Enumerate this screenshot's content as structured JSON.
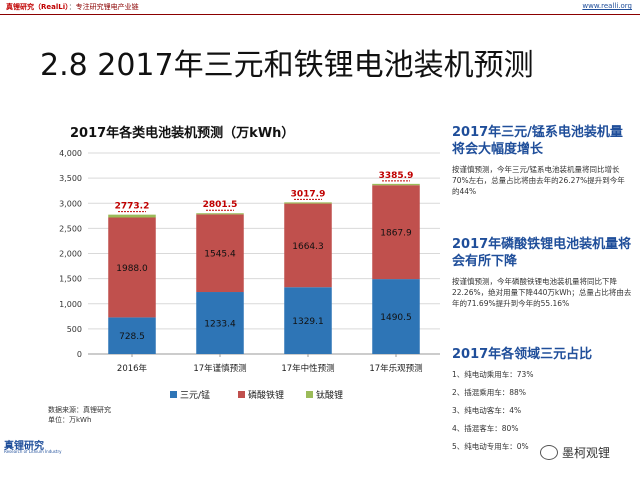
{
  "header": {
    "brand": "真锂研究（RealLi）",
    "separator": "：",
    "tagline": "专注研究锂电产业链",
    "url": "www.realli.org"
  },
  "slide_title": "2.8 2017年三元和铁锂电池装机预测",
  "chart_data": {
    "type": "bar",
    "stacked": true,
    "title": "2017年各类电池装机预测（万kWh）",
    "categories": [
      "2016年",
      "17年谨慎预测",
      "17年中性预测",
      "17年乐观预测"
    ],
    "series": [
      {
        "name": "三元/锰",
        "color": "#2e75b6",
        "values": [
          728.5,
          1233.4,
          1329.1,
          1490.5
        ]
      },
      {
        "name": "磷酸铁锂",
        "color": "#c0504d",
        "values": [
          1988.0,
          1545.4,
          1664.3,
          1867.9
        ]
      },
      {
        "name": "钛酸锂",
        "color": "#9bbb59",
        "values": [
          56.7,
          22.7,
          24.5,
          27.5
        ]
      }
    ],
    "series_labels": [
      [
        "728.5",
        "1233.4",
        "1329.1",
        "1490.5"
      ],
      [
        "1988.0",
        "1545.4",
        "1664.3",
        "1867.9"
      ]
    ],
    "totals": [
      2773.2,
      2801.5,
      3017.9,
      3385.9
    ],
    "total_labels": [
      "2773.2",
      "2801.5",
      "3017.9",
      "3385.9"
    ],
    "total_color": "#c00000",
    "ylim": [
      0,
      4000
    ],
    "yticks": [
      0,
      500,
      1000,
      1500,
      2000,
      2500,
      3000,
      3500,
      4000
    ],
    "ytick_labels": [
      "0",
      "500",
      "1,000",
      "1,500",
      "2,000",
      "2,500",
      "3,000",
      "3,500",
      "4,000"
    ],
    "grid": true,
    "legend": "bottom"
  },
  "footnotes": [
    "数据来源：真锂研究",
    "单位：万kWh"
  ],
  "logo": {
    "name": "真锂研究",
    "sub": "Research of Lithium Industry"
  },
  "sidebar": {
    "sections": [
      {
        "heading": "2017年三元/锰系电池装机量将会大幅度增长",
        "body": "按谨慎预测，今年三元/锰系电池装机量将同比增长70%左右，总量占比将由去年的26.27%提升到今年的44%"
      },
      {
        "heading": "2017年磷酸铁锂电池装机量将会有所下降",
        "body": "按谨慎预测，今年磷酸铁锂电池装机量将同比下降22.26%，绝对用量下降440万kWh；总量占比将由去年的71.69%提升到今年的55.16%"
      },
      {
        "heading": "2017年各领域三元占比",
        "items": [
          "1、纯电动乘用车：73%",
          "2、插混乘用车：88%",
          "3、纯电动客车：4%",
          "4、插混客车：80%",
          "5、纯电动专用车：0%"
        ]
      }
    ]
  },
  "watermark": "墨柯观锂"
}
